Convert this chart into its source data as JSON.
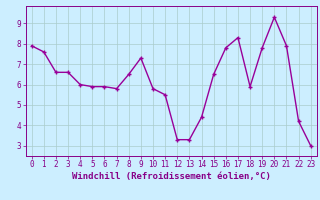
{
  "x": [
    0,
    1,
    2,
    3,
    4,
    5,
    6,
    7,
    8,
    9,
    10,
    11,
    12,
    13,
    14,
    15,
    16,
    17,
    18,
    19,
    20,
    21,
    22,
    23
  ],
  "y": [
    7.9,
    7.6,
    6.6,
    6.6,
    6.0,
    5.9,
    5.9,
    5.8,
    6.5,
    7.3,
    5.8,
    5.5,
    3.3,
    3.3,
    4.4,
    6.5,
    7.8,
    8.3,
    5.9,
    7.8,
    9.3,
    7.9,
    4.2,
    3.0
  ],
  "line_color": "#990099",
  "marker": "+",
  "marker_size": 3.5,
  "linewidth": 1.0,
  "xlabel": "Windchill (Refroidissement éolien,°C)",
  "xlim": [
    -0.5,
    23.5
  ],
  "ylim": [
    2.5,
    9.85
  ],
  "yticks": [
    3,
    4,
    5,
    6,
    7,
    8,
    9
  ],
  "xtick_labels": [
    "0",
    "1",
    "2",
    "3",
    "4",
    "5",
    "6",
    "7",
    "8",
    "9",
    "10",
    "11",
    "12",
    "13",
    "14",
    "15",
    "16",
    "17",
    "18",
    "19",
    "20",
    "21",
    "22",
    "23"
  ],
  "bg_color": "#cceeff",
  "grid_color": "#aacccc",
  "tick_color": "#880088",
  "label_color": "#880088",
  "axis_color": "#880088",
  "xlabel_fontsize": 6.5,
  "tick_fontsize": 5.5
}
